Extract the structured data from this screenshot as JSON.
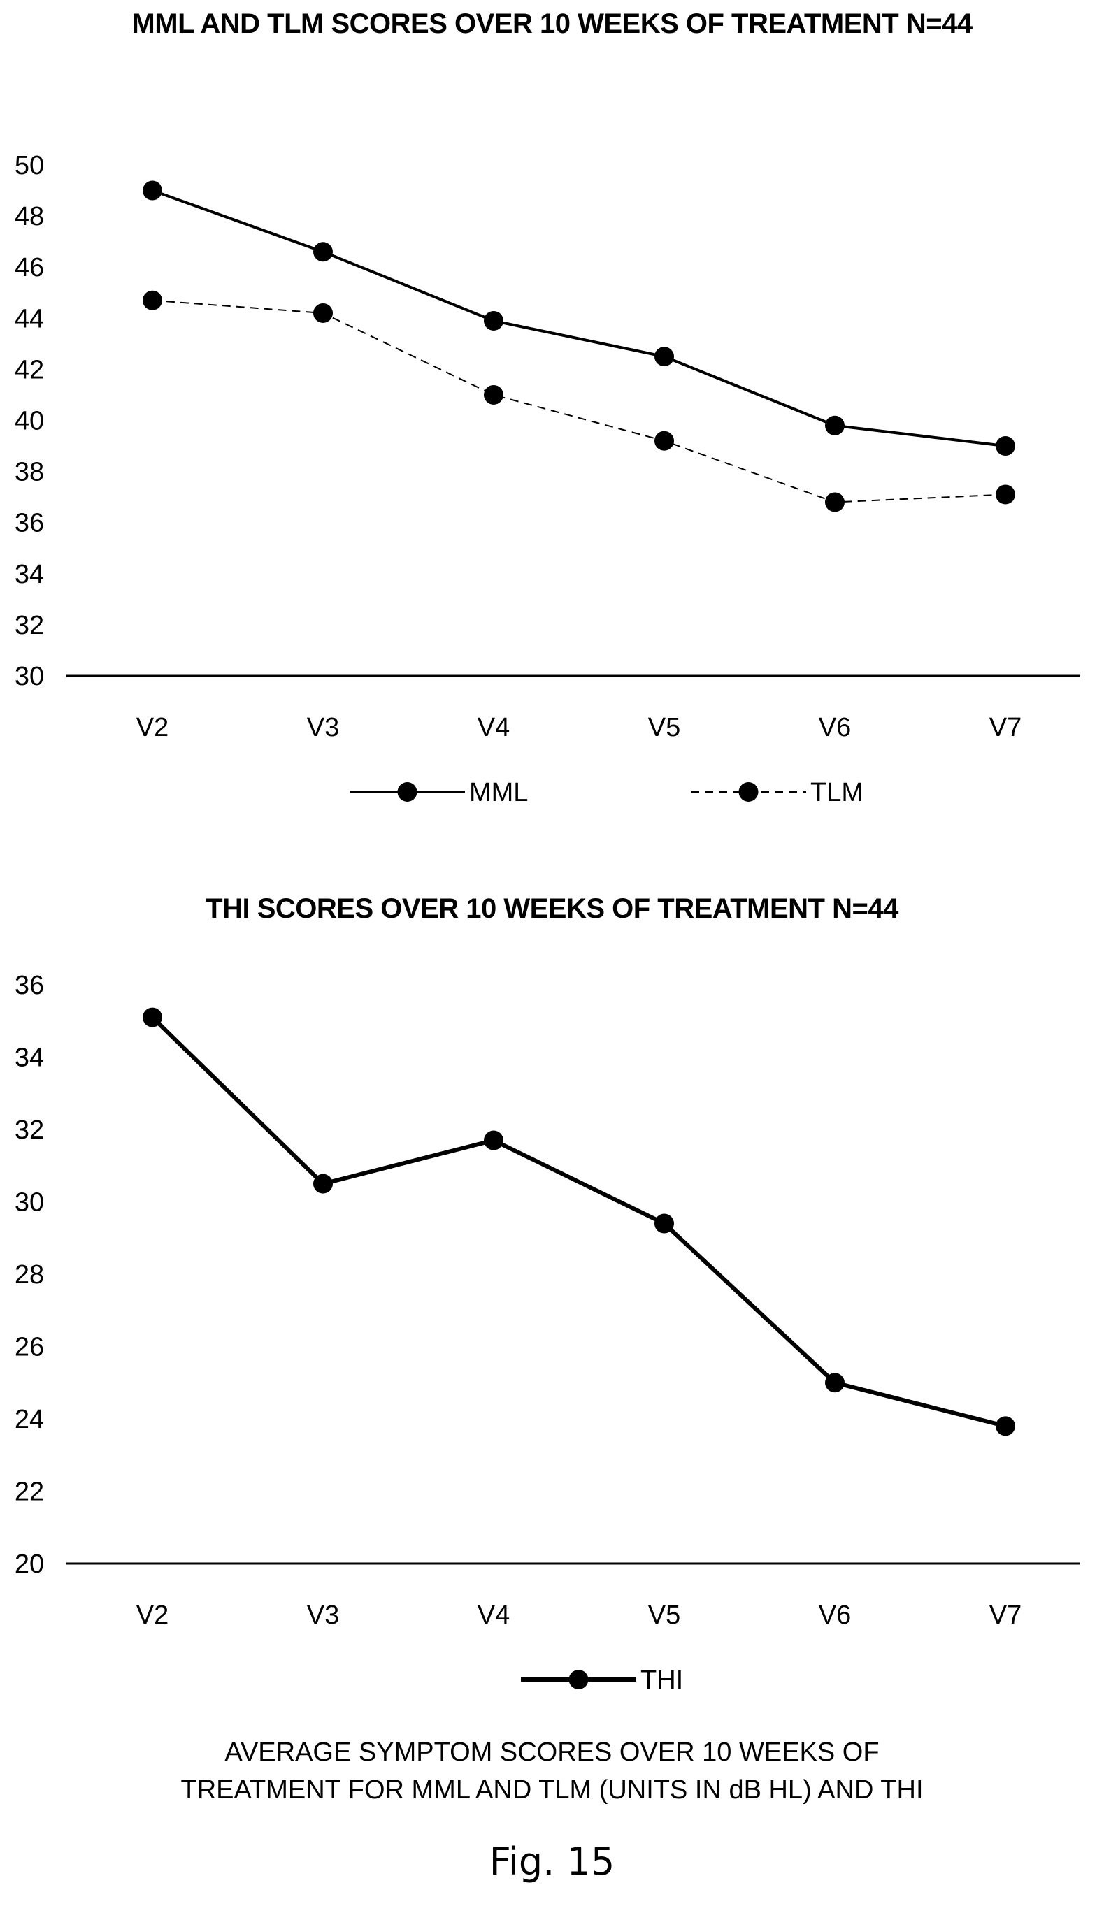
{
  "chart_data": [
    {
      "type": "line",
      "title": "MML AND TLM SCORES OVER 10 WEEKS OF TREATMENT N=44",
      "categories": [
        "V2",
        "V3",
        "V4",
        "V5",
        "V6",
        "V7"
      ],
      "yticks": [
        "30",
        "32",
        "34",
        "36",
        "38",
        "40",
        "42",
        "44",
        "46",
        "48",
        "50"
      ],
      "ylim": [
        30,
        50
      ],
      "grid": false,
      "legend_position": "bottom",
      "series": [
        {
          "name": "MML",
          "values": [
            49.0,
            46.6,
            43.9,
            42.5,
            39.8,
            39.0
          ],
          "style": "solid",
          "color": "#000000"
        },
        {
          "name": "TLM",
          "values": [
            44.7,
            44.2,
            41.0,
            39.2,
            36.8,
            37.1
          ],
          "style": "dashed",
          "color": "#000000"
        }
      ]
    },
    {
      "type": "line",
      "title": "THI SCORES OVER 10 WEEKS OF TREATMENT N=44",
      "categories": [
        "V2",
        "V3",
        "V4",
        "V5",
        "V6",
        "V7"
      ],
      "yticks": [
        "20",
        "22",
        "24",
        "26",
        "28",
        "30",
        "32",
        "34",
        "36"
      ],
      "ylim": [
        20,
        36
      ],
      "grid": false,
      "legend_position": "bottom",
      "series": [
        {
          "name": "THI",
          "values": [
            35.1,
            30.5,
            31.7,
            29.4,
            25.0,
            23.8
          ],
          "style": "solid-thick",
          "color": "#000000"
        }
      ]
    }
  ],
  "caption": {
    "line1": "AVERAGE SYMPTOM SCORES OVER 10 WEEKS OF",
    "line2": "TREATMENT FOR MML AND TLM (UNITS IN dB HL) AND THI"
  },
  "figure_label": "Fig. 15"
}
